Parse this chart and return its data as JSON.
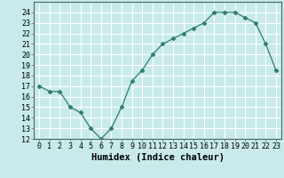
{
  "x": [
    0,
    1,
    2,
    3,
    4,
    5,
    6,
    7,
    8,
    9,
    10,
    11,
    12,
    13,
    14,
    15,
    16,
    17,
    18,
    19,
    20,
    21,
    22,
    23
  ],
  "y": [
    17,
    16.5,
    16.5,
    15,
    14.5,
    13,
    12,
    13,
    15,
    17.5,
    18.5,
    20,
    21,
    21.5,
    22,
    22.5,
    23,
    24,
    24,
    24,
    23.5,
    23,
    21,
    18.5
  ],
  "xlabel": "Humidex (Indice chaleur)",
  "ylim": [
    12,
    25
  ],
  "xlim": [
    -0.5,
    23.5
  ],
  "yticks": [
    12,
    13,
    14,
    15,
    16,
    17,
    18,
    19,
    20,
    21,
    22,
    23,
    24
  ],
  "xticks": [
    0,
    1,
    2,
    3,
    4,
    5,
    6,
    7,
    8,
    9,
    10,
    11,
    12,
    13,
    14,
    15,
    16,
    17,
    18,
    19,
    20,
    21,
    22,
    23
  ],
  "line_color": "#2e7d6e",
  "marker": "D",
  "marker_size": 2.5,
  "bg_color": "#c8eaea",
  "grid_color": "#b0d8d8",
  "tick_fontsize": 6,
  "label_fontsize": 7.5
}
